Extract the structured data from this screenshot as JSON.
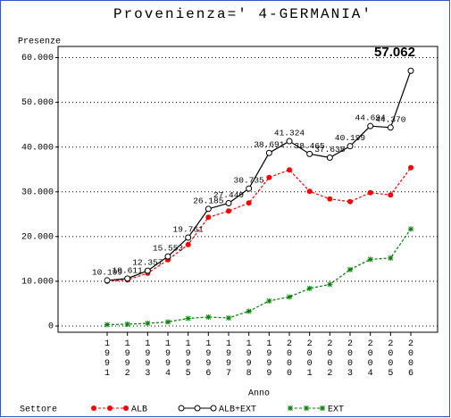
{
  "chart_data": {
    "type": "line",
    "title": "Provenienza=' 4-GERMANIA'",
    "y_label": "Presenze",
    "x_label": "Anno",
    "legend_title": "Settore",
    "categories": [
      "1991",
      "1992",
      "1993",
      "1994",
      "1995",
      "1996",
      "1997",
      "1998",
      "1999",
      "2000",
      "2001",
      "2002",
      "2003",
      "2004",
      "2005",
      "2006"
    ],
    "series": [
      {
        "name": "ALB",
        "color": "#ff0000",
        "marker": "dot",
        "dash": true,
        "values": [
          10000,
          10300,
          11800,
          14800,
          18200,
          24300,
          25700,
          27500,
          33200,
          34900,
          30100,
          28400,
          27800,
          29800,
          29300,
          35400
        ]
      },
      {
        "name": "ALB+EXT",
        "color": "#000000",
        "marker": "circle",
        "dash": false,
        "values": [
          10199,
          10611,
          12357,
          15553,
          19761,
          26185,
          27449,
          30735,
          38691,
          41324,
          38465,
          37638,
          40199,
          44694,
          44370,
          57062
        ],
        "value_labels": [
          "10.199",
          "10.611",
          "12.357",
          "15.553",
          "19.761",
          "26.185",
          "27.449",
          "30.735",
          "38.691",
          "41.324",
          "38.465",
          "37.638",
          "40.199",
          "44.694",
          "44.370",
          "57.062"
        ]
      },
      {
        "name": "EXT",
        "color": "#008000",
        "marker": "star",
        "dash": true,
        "values": [
          300,
          400,
          600,
          900,
          1700,
          2000,
          1800,
          3300,
          5600,
          6500,
          8400,
          9300,
          12600,
          14900,
          15200,
          21700
        ]
      }
    ],
    "ylim": [
      -1400,
      62500
    ],
    "yticks": [
      {
        "value": 0,
        "label": "0"
      },
      {
        "value": 10000,
        "label": "10.000"
      },
      {
        "value": 20000,
        "label": "20.000"
      },
      {
        "value": 30000,
        "label": "30.000"
      },
      {
        "value": 40000,
        "label": "40.000"
      },
      {
        "value": 50000,
        "label": "50.000"
      },
      {
        "value": 60000,
        "label": "60.000"
      }
    ],
    "grid": true
  }
}
